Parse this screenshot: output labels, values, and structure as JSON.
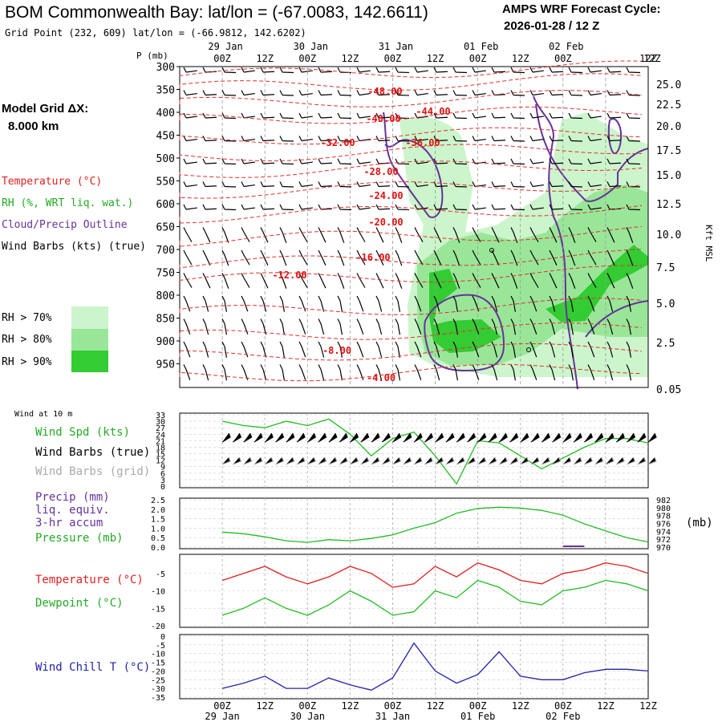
{
  "header": {
    "title": "BOM Commonwealth Bay:  lat/lon = (-67.0083, 142.6611)",
    "cycle_label": "AMPS WRF Forecast Cycle:",
    "cycle_value": "2026-01-28 / 12  Z",
    "grid_point": "Grid Point (232, 609) lat/lon = (-66.9812, 142.6202)"
  },
  "time_axis": {
    "hours": [
      0,
      12,
      24,
      36,
      48,
      60,
      72,
      84,
      96,
      108,
      120
    ],
    "tick_labels": [
      "00Z",
      "12Z",
      "00Z",
      "12Z",
      "00Z",
      "12Z",
      "00Z",
      "12Z",
      "00Z",
      "12Z"
    ],
    "date_labels": [
      "29 Jan",
      "30 Jan",
      "31 Jan",
      "01 Feb",
      "02 Feb"
    ]
  },
  "legend": {
    "model_grid": "Model Grid ΔX:",
    "model_grid_value": "8.000 km",
    "temperature": "Temperature (°C)",
    "rh": "RH (%, WRT liq. wat.)",
    "cloud": "Cloud/Precip Outline",
    "wind": "Wind Barbs (kts) (true)",
    "rh_levels": [
      "RH > 70%",
      "RH > 80%",
      "RH > 90%"
    ],
    "rh_colors": [
      "#ccf5cc",
      "#99e699",
      "#33cc33"
    ]
  },
  "profile": {
    "p_label": "P (mb)",
    "p_ticks": [
      "300",
      "350",
      "400",
      "450",
      "500",
      "550",
      "600",
      "650",
      "700",
      "750",
      "800",
      "850",
      "900",
      "950"
    ],
    "kft_ticks": [
      "25.0",
      "22.5",
      "20.0",
      "17.5",
      "15.0",
      "12.5",
      "10.0",
      "7.5",
      "5.0",
      "2.5",
      "0.05"
    ],
    "kft_label": "Kft MSL",
    "temp_labels": [
      "-48.00",
      "-44.00",
      "-40.00",
      "-36.00",
      "-32.00",
      "-28.00",
      "-24.00",
      "-20.00",
      "-16.00",
      "-12.00",
      "-8.00",
      "-4.00"
    ]
  },
  "panels": {
    "wind_title": "Wind at 10 m",
    "wind_spd": "Wind Spd (kts)",
    "wind_barbs_true": "Wind Barbs (true)",
    "wind_barbs_grid": "Wind Barbs (grid)",
    "precip1": "Precip (mm)",
    "precip2": "liq. equiv.",
    "precip3": "3-hr accum",
    "pressure": "Pressure (mb)",
    "pressure_unit": "(mb)",
    "temperature": "Temperature (°C)",
    "dewpoint": "Dewpoint (°C)",
    "wind_chill": "Wind Chill T (°C)"
  },
  "colors": {
    "temp": "#e02020",
    "green": "#22bb22",
    "purple": "#663399",
    "blue": "#2222aa",
    "gray": "#aaaaaa"
  },
  "chart_data": [
    {
      "type": "line",
      "title": "Wind at 10 m",
      "x_units": "forecast hour from 2026-01-28 12Z",
      "ylim": [
        0,
        33
      ],
      "y_ticks": [
        0,
        3,
        6,
        9,
        12,
        15,
        18,
        21,
        24,
        27,
        30,
        33
      ],
      "series": [
        {
          "name": "Wind Spd (kts)",
          "x": [
            0,
            6,
            12,
            18,
            24,
            30,
            36,
            42,
            48,
            54,
            60,
            66,
            72,
            78,
            84,
            90,
            96,
            102,
            108,
            114,
            120
          ],
          "values": [
            30,
            28,
            27,
            30,
            28,
            31,
            24,
            14,
            22,
            25,
            14,
            1,
            21,
            20,
            14,
            8,
            13,
            18,
            22,
            22,
            20
          ]
        }
      ]
    },
    {
      "type": "line",
      "title": "Precip / Pressure",
      "ylim_left": [
        0,
        2.5
      ],
      "y_ticks_left": [
        "0.0",
        "0.5",
        "1.0",
        "1.5",
        "2.0",
        "2.5"
      ],
      "ylim_right": [
        970,
        982
      ],
      "y_ticks_right": [
        "970",
        "972",
        "974",
        "976",
        "978",
        "980",
        "982"
      ],
      "series": [
        {
          "name": "Pressure (mb)",
          "x": [
            0,
            6,
            12,
            18,
            24,
            30,
            36,
            42,
            48,
            54,
            60,
            66,
            72,
            78,
            84,
            90,
            96,
            102,
            108,
            114,
            120
          ],
          "values": [
            973.8,
            973.4,
            972.6,
            971.6,
            971.2,
            971.9,
            971.6,
            972.2,
            973.1,
            974.8,
            976.2,
            978.6,
            979.8,
            980.1,
            979.9,
            979.3,
            978.1,
            975.9,
            974.1,
            972.4,
            971.3
          ]
        },
        {
          "name": "Precip (mm)",
          "x": [
            96,
            102
          ],
          "values": [
            0.02,
            0.02
          ]
        }
      ]
    },
    {
      "type": "line",
      "title": "Temperature / Dewpoint",
      "ylim": [
        -20,
        0
      ],
      "y_ticks": [
        "-5",
        "-10",
        "-15",
        "-20"
      ],
      "series": [
        {
          "name": "Temperature (°C)",
          "x": [
            0,
            6,
            12,
            18,
            24,
            30,
            36,
            42,
            48,
            54,
            60,
            66,
            72,
            78,
            84,
            90,
            96,
            102,
            108,
            114,
            120
          ],
          "values": [
            -7,
            -5,
            -3,
            -6,
            -8,
            -6,
            -3,
            -5,
            -9,
            -8,
            -3,
            -6,
            -2,
            -4,
            -7,
            -8,
            -5,
            -4,
            -2,
            -3,
            -5
          ]
        },
        {
          "name": "Dewpoint (°C)",
          "x": [
            0,
            6,
            12,
            18,
            24,
            30,
            36,
            42,
            48,
            54,
            60,
            66,
            72,
            78,
            84,
            90,
            96,
            102,
            108,
            114,
            120
          ],
          "values": [
            -17,
            -15,
            -12,
            -15,
            -17,
            -14,
            -10,
            -13,
            -17,
            -16,
            -10,
            -12,
            -7,
            -9,
            -13,
            -14,
            -10,
            -9,
            -7,
            -8,
            -10
          ]
        }
      ]
    },
    {
      "type": "line",
      "title": "Wind Chill",
      "ylim": [
        -35,
        0
      ],
      "y_ticks": [
        "0",
        "-5",
        "-10",
        "-15",
        "-20",
        "-25",
        "-30",
        "-35"
      ],
      "series": [
        {
          "name": "Wind Chill T (°C)",
          "x": [
            0,
            6,
            12,
            18,
            24,
            30,
            36,
            42,
            48,
            54,
            60,
            66,
            72,
            78,
            84,
            90,
            96,
            102,
            108,
            114,
            120
          ],
          "values": [
            -30,
            -27,
            -23,
            -30,
            -30,
            -24,
            -28,
            -31,
            -24,
            -4,
            -20,
            -27,
            -22,
            -9,
            -23,
            -25,
            -25,
            -21,
            -19,
            -19,
            -20
          ]
        }
      ]
    }
  ]
}
